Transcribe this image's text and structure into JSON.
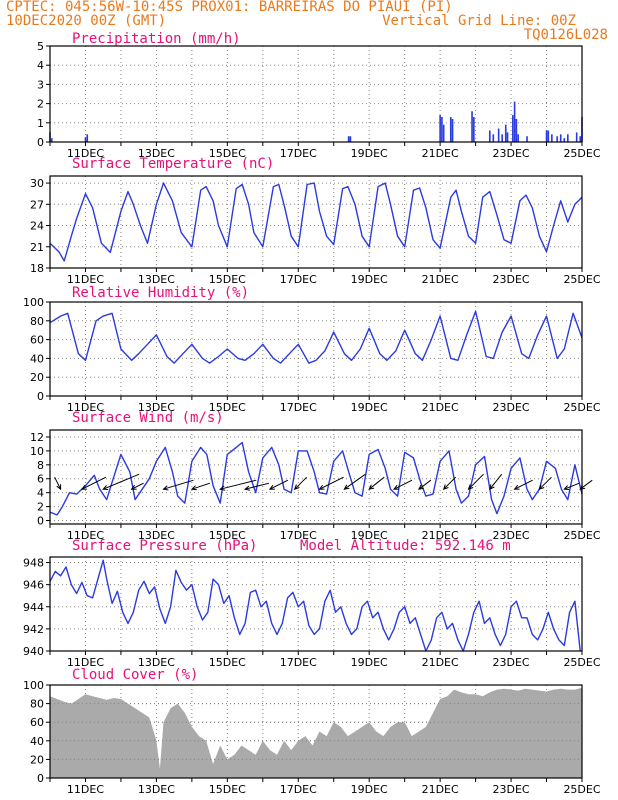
{
  "header": {
    "line1": "CPTEC:   045:56W-10:45S   PROX01: BARREIRAS DO PIAUI (PI)",
    "line2": "10DEC2020 00Z (GMT)",
    "grid_note": "Vertical Grid Line: 00Z",
    "code": "TQ0126L028"
  },
  "colors": {
    "header": "#e87a1e",
    "title": "#e8107a",
    "line": "#2a3be0",
    "bar": "#2a3be0",
    "cloud": "#aaaaaa",
    "arrow": "#000000",
    "grid": "#888888"
  },
  "chart_data": [
    {
      "id": "precip",
      "type": "bar",
      "title": "Precipitation (mm/h)",
      "ylim": [
        0,
        5
      ],
      "yticks": [
        0,
        1,
        2,
        3,
        4,
        5
      ],
      "x_tick_labels": [
        "11DEC",
        "13DEC",
        "15DEC",
        "17DEC",
        "19DEC",
        "21DEC",
        "23DEC",
        "25DEC"
      ],
      "x_range_days": [
        10,
        25
      ],
      "grid": true,
      "x": [
        10.0,
        10.05,
        11.0,
        11.05,
        18.42,
        18.47,
        21.0,
        21.05,
        21.1,
        21.3,
        21.35,
        21.9,
        21.95,
        22.4,
        22.5,
        22.65,
        22.75,
        22.85,
        22.9,
        23.05,
        23.1,
        23.15,
        23.2,
        23.45,
        24.0,
        24.05,
        24.15,
        24.3,
        24.4,
        24.5,
        24.6,
        24.85,
        24.95,
        25.0
      ],
      "values": [
        0.5,
        0.2,
        0.25,
        0.4,
        0.3,
        0.3,
        1.4,
        1.3,
        0.9,
        1.3,
        1.2,
        1.6,
        1.3,
        0.6,
        0.4,
        0.7,
        0.4,
        0.9,
        0.5,
        1.4,
        2.1,
        1.2,
        0.4,
        0.3,
        0.6,
        0.6,
        0.4,
        0.3,
        0.4,
        0.2,
        0.4,
        0.5,
        0.3,
        1.3
      ]
    },
    {
      "id": "temp",
      "type": "line",
      "title": "Surface Temperature (nC)",
      "ylim": [
        18,
        31
      ],
      "yticks": [
        18,
        21,
        24,
        27,
        30
      ],
      "x_tick_labels": [
        "11DEC",
        "13DEC",
        "15DEC",
        "17DEC",
        "19DEC",
        "21DEC",
        "23DEC",
        "25DEC"
      ],
      "x_range_days": [
        10,
        25
      ],
      "grid": true,
      "x": [
        10.0,
        10.25,
        10.4,
        10.6,
        10.75,
        11.0,
        11.2,
        11.45,
        11.7,
        12.0,
        12.2,
        12.35,
        12.55,
        12.75,
        13.0,
        13.2,
        13.45,
        13.7,
        14.0,
        14.25,
        14.4,
        14.6,
        14.75,
        15.0,
        15.25,
        15.42,
        15.6,
        15.75,
        16.0,
        16.3,
        16.45,
        16.62,
        16.8,
        17.0,
        17.25,
        17.45,
        17.6,
        17.8,
        18.0,
        18.25,
        18.4,
        18.6,
        18.8,
        19.0,
        19.25,
        19.45,
        19.6,
        19.8,
        20.0,
        20.25,
        20.42,
        20.6,
        20.8,
        21.0,
        21.3,
        21.45,
        21.6,
        21.8,
        22.0,
        22.2,
        22.4,
        22.6,
        22.8,
        23.0,
        23.25,
        23.42,
        23.6,
        23.8,
        24.0,
        24.2,
        24.4,
        24.6,
        24.8,
        25.0
      ],
      "values": [
        21.5,
        20.3,
        19.0,
        22.5,
        25.0,
        28.5,
        26.5,
        21.5,
        20.2,
        26.0,
        28.8,
        27.0,
        24.0,
        21.5,
        27.0,
        30.0,
        27.5,
        23.0,
        21.0,
        29.0,
        29.5,
        27.5,
        24.0,
        21.0,
        29.2,
        29.8,
        27.0,
        23.0,
        21.0,
        29.5,
        29.8,
        26.5,
        22.5,
        21.0,
        29.8,
        30.0,
        26.0,
        22.5,
        21.3,
        29.2,
        29.5,
        27.0,
        22.5,
        21.0,
        29.5,
        30.0,
        27.0,
        22.5,
        21.0,
        29.0,
        29.3,
        26.5,
        22.0,
        20.8,
        28.0,
        29.0,
        26.0,
        22.5,
        21.5,
        28.0,
        28.8,
        25.5,
        22.0,
        21.5,
        27.5,
        28.3,
        26.5,
        22.5,
        20.3,
        24.0,
        27.5,
        24.5,
        27.0,
        28.0
      ]
    },
    {
      "id": "rh",
      "type": "line",
      "title": "Relative Humidity (%)",
      "ylim": [
        0,
        100
      ],
      "yticks": [
        0,
        20,
        40,
        60,
        80,
        100
      ],
      "x_tick_labels": [
        "11DEC",
        "13DEC",
        "15DEC",
        "17DEC",
        "19DEC",
        "21DEC",
        "23DEC",
        "25DEC"
      ],
      "x_range_days": [
        10,
        25
      ],
      "grid": true,
      "x": [
        10.0,
        10.3,
        10.5,
        10.8,
        11.0,
        11.3,
        11.5,
        11.75,
        12.0,
        12.3,
        12.5,
        12.75,
        13.0,
        13.3,
        13.5,
        13.75,
        14.0,
        14.3,
        14.5,
        14.75,
        15.0,
        15.3,
        15.5,
        15.75,
        16.0,
        16.3,
        16.5,
        16.75,
        17.0,
        17.3,
        17.5,
        17.75,
        18.0,
        18.3,
        18.5,
        18.75,
        19.0,
        19.3,
        19.5,
        19.75,
        20.0,
        20.3,
        20.5,
        20.75,
        21.0,
        21.3,
        21.5,
        21.75,
        22.0,
        22.3,
        22.5,
        22.75,
        23.0,
        23.3,
        23.5,
        23.75,
        24.0,
        24.3,
        24.5,
        24.75,
        25.0
      ],
      "values": [
        78,
        85,
        88,
        45,
        38,
        80,
        85,
        88,
        50,
        38,
        45,
        55,
        65,
        42,
        35,
        45,
        55,
        40,
        35,
        42,
        50,
        40,
        38,
        45,
        55,
        40,
        35,
        45,
        55,
        35,
        38,
        48,
        68,
        45,
        38,
        50,
        72,
        45,
        38,
        48,
        70,
        45,
        38,
        60,
        85,
        40,
        38,
        65,
        90,
        42,
        40,
        68,
        85,
        45,
        40,
        65,
        85,
        40,
        50,
        88,
        62
      ]
    },
    {
      "id": "wind",
      "type": "line",
      "title": "Surface Wind (m/s)",
      "ylim": [
        -0.5,
        13
      ],
      "yticks": [
        0,
        2,
        4,
        6,
        8,
        10,
        12
      ],
      "x_tick_labels": [
        "11DEC",
        "13DEC",
        "15DEC",
        "17DEC",
        "19DEC",
        "21DEC",
        "23DEC",
        "25DEC"
      ],
      "x_range_days": [
        10,
        25
      ],
      "grid": true,
      "x": [
        10.0,
        10.2,
        10.35,
        10.55,
        10.75,
        11.0,
        11.25,
        11.4,
        11.6,
        11.75,
        12.0,
        12.25,
        12.4,
        12.6,
        12.8,
        13.0,
        13.25,
        13.45,
        13.6,
        13.8,
        14.0,
        14.25,
        14.42,
        14.6,
        14.8,
        15.0,
        15.25,
        15.42,
        15.6,
        15.8,
        16.0,
        16.25,
        16.45,
        16.6,
        16.8,
        17.0,
        17.25,
        17.45,
        17.6,
        17.8,
        18.0,
        18.25,
        18.45,
        18.6,
        18.8,
        19.0,
        19.25,
        19.45,
        19.6,
        19.8,
        20.0,
        20.25,
        20.45,
        20.6,
        20.8,
        21.0,
        21.25,
        21.45,
        21.6,
        21.8,
        22.0,
        22.25,
        22.45,
        22.6,
        22.8,
        23.0,
        23.25,
        23.45,
        23.6,
        23.8,
        24.0,
        24.25,
        24.42,
        24.6,
        24.8,
        25.0
      ],
      "values": [
        1.2,
        0.8,
        2.0,
        4.0,
        3.8,
        5.0,
        6.5,
        4.5,
        3.0,
        5.5,
        9.5,
        7.0,
        3.0,
        4.5,
        6.0,
        8.5,
        10.5,
        7.0,
        3.5,
        2.5,
        8.5,
        10.5,
        9.5,
        5.0,
        2.5,
        9.5,
        10.5,
        11.2,
        7.0,
        4.0,
        9.0,
        10.5,
        8.0,
        4.5,
        4.0,
        10.0,
        10.0,
        7.0,
        4.0,
        3.8,
        8.5,
        10.0,
        6.5,
        4.0,
        3.5,
        9.5,
        10.2,
        7.5,
        4.5,
        3.5,
        9.8,
        9.0,
        5.5,
        3.5,
        3.8,
        8.5,
        10.0,
        4.5,
        2.5,
        3.5,
        8.0,
        9.2,
        3.0,
        1.0,
        3.5,
        7.5,
        9.0,
        4.5,
        3.0,
        4.5,
        8.5,
        7.5,
        4.5,
        3.0,
        8.0,
        3.8
      ],
      "barbs": [
        {
          "x": 10.3,
          "u": -1.0,
          "v": 2.0
        },
        {
          "x": 10.9,
          "u": 4.0,
          "v": 2.0
        },
        {
          "x": 11.5,
          "u": 6.0,
          "v": 2.5
        },
        {
          "x": 12.3,
          "u": 2.0,
          "v": 1.0
        },
        {
          "x": 13.2,
          "u": 5.0,
          "v": 1.5
        },
        {
          "x": 14.0,
          "u": 3.0,
          "v": 1.0
        },
        {
          "x": 14.8,
          "u": 6.0,
          "v": 1.5
        },
        {
          "x": 15.5,
          "u": 4.0,
          "v": 1.0
        },
        {
          "x": 16.2,
          "u": 3.0,
          "v": 1.5
        },
        {
          "x": 16.9,
          "u": 2.0,
          "v": 2.0
        },
        {
          "x": 17.6,
          "u": 4.0,
          "v": 2.0
        },
        {
          "x": 18.3,
          "u": 3.5,
          "v": 2.5
        },
        {
          "x": 19.0,
          "u": 2.5,
          "v": 2.0
        },
        {
          "x": 19.7,
          "u": 3.0,
          "v": 1.5
        },
        {
          "x": 20.4,
          "u": 2.0,
          "v": 1.5
        },
        {
          "x": 21.1,
          "u": 2.0,
          "v": 2.0
        },
        {
          "x": 21.8,
          "u": 2.5,
          "v": 2.5
        },
        {
          "x": 22.4,
          "u": 2.0,
          "v": 2.5
        },
        {
          "x": 23.1,
          "u": 3.0,
          "v": 1.5
        },
        {
          "x": 23.8,
          "u": 2.0,
          "v": 2.0
        },
        {
          "x": 24.5,
          "u": 2.5,
          "v": 1.0
        },
        {
          "x": 24.95,
          "u": 2.0,
          "v": 1.5
        }
      ]
    },
    {
      "id": "pressure",
      "type": "line",
      "title": "Surface Pressure (hPa)",
      "annotation": "Model Altitude: 592.146 m",
      "ylim": [
        940,
        948.5
      ],
      "yticks": [
        940,
        942,
        944,
        946,
        948
      ],
      "x_tick_labels": [
        "11DEC",
        "13DEC",
        "15DEC",
        "17DEC",
        "19DEC",
        "21DEC",
        "23DEC",
        "25DEC"
      ],
      "x_range_days": [
        10,
        25
      ],
      "grid": true,
      "x": [
        10.0,
        10.15,
        10.3,
        10.45,
        10.6,
        10.75,
        10.9,
        11.05,
        11.2,
        11.35,
        11.5,
        11.6,
        11.75,
        11.9,
        12.05,
        12.2,
        12.35,
        12.5,
        12.65,
        12.8,
        12.95,
        13.1,
        13.25,
        13.4,
        13.55,
        13.7,
        13.85,
        14.0,
        14.15,
        14.3,
        14.45,
        14.6,
        14.75,
        14.9,
        15.05,
        15.2,
        15.35,
        15.5,
        15.65,
        15.8,
        15.95,
        16.1,
        16.25,
        16.4,
        16.55,
        16.7,
        16.85,
        17.0,
        17.15,
        17.3,
        17.45,
        17.6,
        17.75,
        17.9,
        18.05,
        18.2,
        18.35,
        18.5,
        18.65,
        18.8,
        18.95,
        19.1,
        19.25,
        19.4,
        19.55,
        19.7,
        19.85,
        20.0,
        20.15,
        20.3,
        20.45,
        20.6,
        20.75,
        20.9,
        21.05,
        21.2,
        21.35,
        21.5,
        21.65,
        21.8,
        21.95,
        22.1,
        22.25,
        22.4,
        22.55,
        22.7,
        22.85,
        23.0,
        23.15,
        23.3,
        23.45,
        23.6,
        23.75,
        23.9,
        24.05,
        24.2,
        24.35,
        24.5,
        24.65,
        24.8,
        24.95
      ],
      "values": [
        946.3,
        947.2,
        946.8,
        947.6,
        946.0,
        945.2,
        946.2,
        945.0,
        944.8,
        946.5,
        948.2,
        946.5,
        944.3,
        945.4,
        943.5,
        942.5,
        943.5,
        945.5,
        946.3,
        945.2,
        945.8,
        943.8,
        942.5,
        944.0,
        947.3,
        946.2,
        945.5,
        946.0,
        944.0,
        942.8,
        943.5,
        946.5,
        946.0,
        944.3,
        945.0,
        943.0,
        941.5,
        942.5,
        945.3,
        945.5,
        944.0,
        944.5,
        942.5,
        941.5,
        942.5,
        944.8,
        945.3,
        944.0,
        944.5,
        942.3,
        941.5,
        942.0,
        944.5,
        945.5,
        943.5,
        944.0,
        942.5,
        941.5,
        942.0,
        944.0,
        944.5,
        943.0,
        943.5,
        942.0,
        941.0,
        942.0,
        943.5,
        944.0,
        942.5,
        943.0,
        941.5,
        940.0,
        941.0,
        943.0,
        943.5,
        942.0,
        942.5,
        941.0,
        940.0,
        941.5,
        943.5,
        944.5,
        942.5,
        943.0,
        941.5,
        940.5,
        941.5,
        944.0,
        944.5,
        943.0,
        943.0,
        941.5,
        941.0,
        942.0,
        943.5,
        942.0,
        941.0,
        940.5,
        943.5,
        944.5,
        940.0
      ]
    },
    {
      "id": "cloud",
      "type": "area",
      "title": "Cloud Cover (%)",
      "ylim": [
        0,
        100
      ],
      "yticks": [
        0,
        20,
        40,
        60,
        80,
        100
      ],
      "x_tick_labels": [
        "11DEC",
        "13DEC",
        "15DEC",
        "17DEC",
        "19DEC",
        "21DEC",
        "23DEC",
        "25DEC"
      ],
      "x_range_days": [
        10,
        25
      ],
      "grid": true,
      "x": [
        10.0,
        10.2,
        10.4,
        10.6,
        10.8,
        11.0,
        11.2,
        11.4,
        11.6,
        11.8,
        12.0,
        12.2,
        12.4,
        12.6,
        12.8,
        13.0,
        13.1,
        13.2,
        13.4,
        13.6,
        13.8,
        14.0,
        14.2,
        14.4,
        14.6,
        14.8,
        15.0,
        15.2,
        15.4,
        15.6,
        15.8,
        16.0,
        16.2,
        16.4,
        16.6,
        16.8,
        17.0,
        17.2,
        17.4,
        17.6,
        17.8,
        18.0,
        18.2,
        18.4,
        18.6,
        18.8,
        19.0,
        19.2,
        19.4,
        19.6,
        19.8,
        20.0,
        20.2,
        20.4,
        20.6,
        20.8,
        21.0,
        21.2,
        21.4,
        21.6,
        21.8,
        22.0,
        22.2,
        22.4,
        22.6,
        22.8,
        23.0,
        23.2,
        23.4,
        23.6,
        23.8,
        24.0,
        24.2,
        24.4,
        24.6,
        24.8,
        25.0
      ],
      "values": [
        88,
        85,
        82,
        80,
        85,
        90,
        88,
        86,
        84,
        86,
        85,
        80,
        75,
        70,
        65,
        40,
        10,
        60,
        75,
        80,
        70,
        55,
        45,
        40,
        15,
        35,
        20,
        25,
        35,
        30,
        25,
        40,
        30,
        25,
        40,
        30,
        40,
        45,
        35,
        50,
        45,
        60,
        55,
        45,
        50,
        55,
        60,
        50,
        45,
        55,
        60,
        60,
        45,
        50,
        55,
        70,
        85,
        88,
        95,
        92,
        90,
        90,
        88,
        92,
        95,
        96,
        95,
        94,
        96,
        95,
        94,
        93,
        95,
        96,
        95,
        95,
        97
      ]
    }
  ]
}
